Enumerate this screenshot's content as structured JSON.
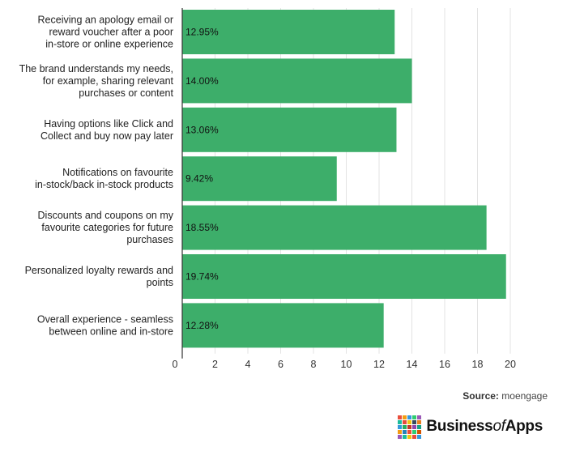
{
  "chart_data": {
    "type": "bar",
    "orientation": "horizontal",
    "categories": [
      [
        "Receiving an apology email or",
        "reward voucher after a poor",
        "in-store or online experience"
      ],
      [
        "The brand understands my needs,",
        "for example, sharing relevant",
        "purchases or content"
      ],
      [
        "Having options like Click and",
        "Collect and buy now pay later"
      ],
      [
        "Notifications on favourite",
        "in-stock/back in-stock products"
      ],
      [
        "Discounts and coupons on my",
        "favourite categories for future",
        "purchases"
      ],
      [
        "Personalized loyalty rewards and",
        "points"
      ],
      [
        "Overall experience - seamless",
        "between online and in-store"
      ]
    ],
    "values": [
      12.95,
      14.0,
      13.06,
      9.42,
      18.55,
      19.74,
      12.28
    ],
    "value_labels": [
      "12.95%",
      "14.00%",
      "13.06%",
      "9.42%",
      "18.55%",
      "19.74%",
      "12.28%"
    ],
    "xticks": [
      "0",
      "2",
      "4",
      "6",
      "8",
      "10",
      "12",
      "14",
      "16",
      "18",
      "20"
    ],
    "xlim": [
      0,
      20
    ],
    "grid": "vertical",
    "bar_color": "#3dae6a",
    "title": "",
    "xlabel": "",
    "ylabel": ""
  },
  "source": {
    "prefix": "Source:",
    "name": "moengage"
  },
  "logo": {
    "brand_bold": "Business",
    "brand_italic": "of",
    "brand_end": "Apps",
    "mark_colors": [
      "#e94e3c",
      "#f39c12",
      "#3498db",
      "#2ecc71",
      "#9b59b6",
      "#1abc9c",
      "#e74c3c",
      "#f1c40f",
      "#34495e",
      "#e67e22",
      "#3498db",
      "#27ae60",
      "#c0392b",
      "#8e44ad",
      "#16a085",
      "#f39c12",
      "#2980b9",
      "#e94e3c",
      "#2ecc71",
      "#d35400",
      "#9b59b6",
      "#1abc9c",
      "#f1c40f",
      "#e74c3c",
      "#3498db"
    ]
  }
}
